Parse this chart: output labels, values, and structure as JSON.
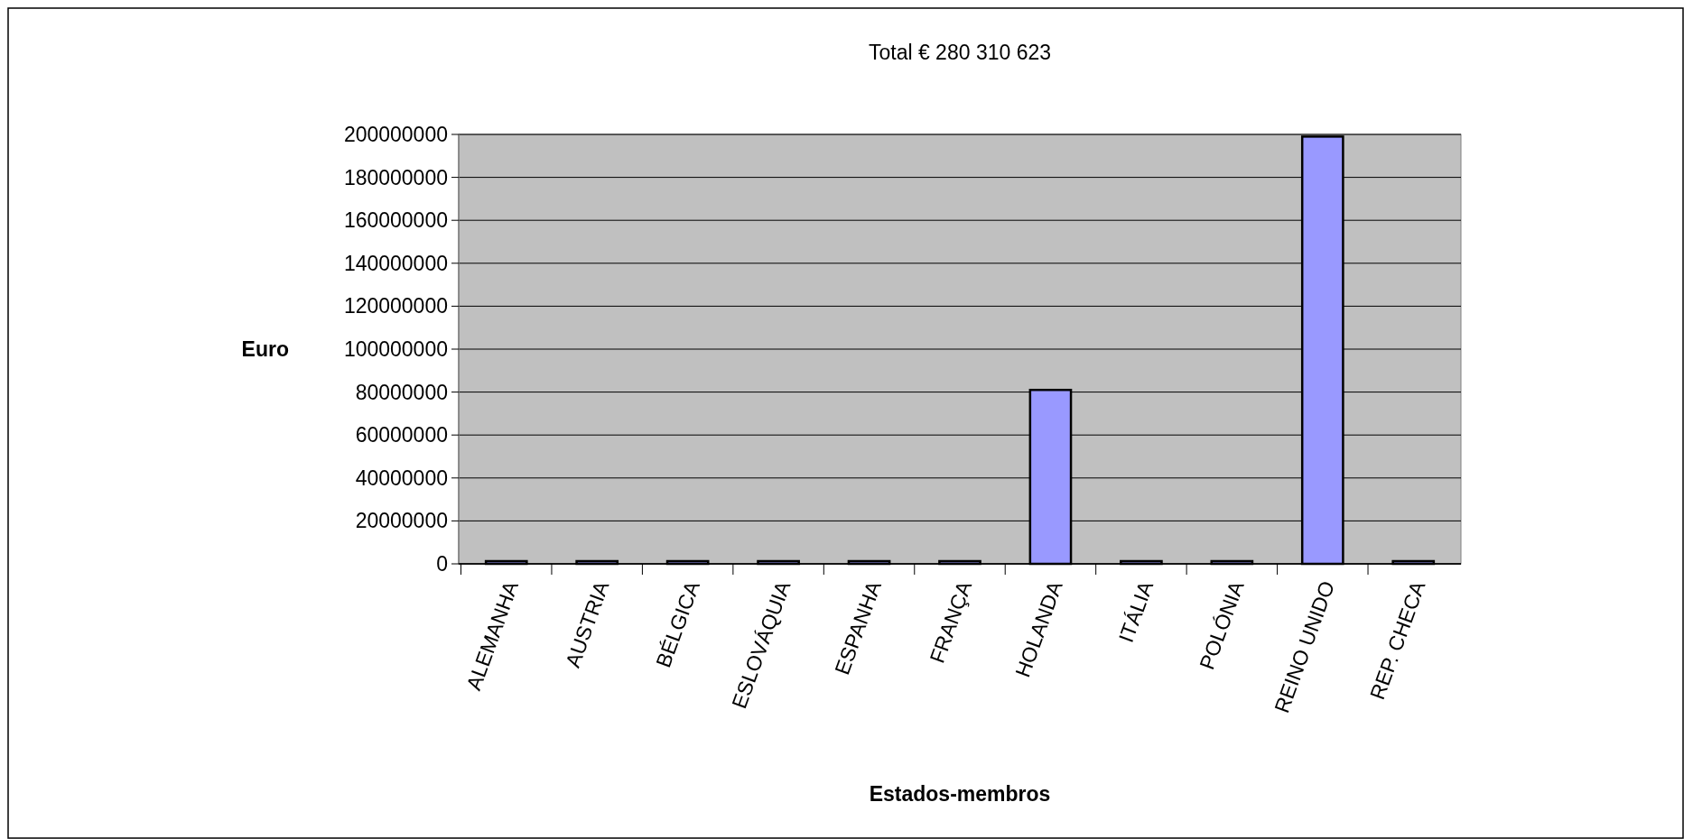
{
  "chart_data": {
    "type": "bar",
    "title": "Total € 280 310 623",
    "xlabel": "Estados-membros",
    "ylabel": "Euro",
    "categories": [
      "ALEMANHA",
      "AUSTRIA",
      "BÉLGICA",
      "ESLOVÁQUIA",
      "ESPANHA",
      "FRANÇA",
      "HOLANDA",
      "ITÁLIA",
      "POLÓNIA",
      "REINO UNIDO",
      "REP. CHECA"
    ],
    "values": [
      0,
      0,
      0,
      0,
      0,
      0,
      81000000,
      0,
      0,
      199000000,
      0
    ],
    "color": "#9999ff",
    "ylim": [
      0,
      200000000
    ],
    "yticks": [
      0,
      20000000,
      40000000,
      60000000,
      80000000,
      100000000,
      120000000,
      140000000,
      160000000,
      180000000,
      200000000
    ],
    "grid": "y"
  }
}
